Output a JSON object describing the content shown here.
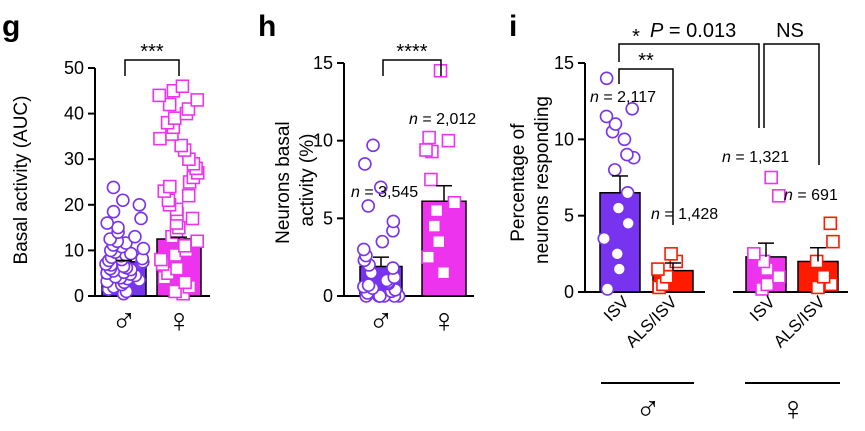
{
  "colors": {
    "male": "#7733ee",
    "female": "#ee33ee",
    "als": "#ff1a00",
    "axis": "#000000"
  },
  "chart_data": [
    {
      "panel": "g",
      "type": "bar",
      "ylabel": "Basal activity (AUC)",
      "ylim": [
        0,
        50
      ],
      "yticks": [
        0,
        10,
        20,
        30,
        40,
        50
      ],
      "categories": [
        "♂",
        "♀"
      ],
      "values": [
        7.5,
        12.5
      ],
      "errors": [
        0.3,
        0.4
      ],
      "significance": "***",
      "points": [
        [
          0.5,
          1.0,
          1.5,
          2.0,
          2.5,
          3.0,
          3.2,
          3.5,
          3.8,
          4.0,
          4.2,
          4.5,
          4.8,
          5.0,
          5.2,
          5.5,
          5.8,
          6.0,
          6.2,
          6.5,
          6.8,
          7.0,
          7.2,
          7.5,
          7.8,
          8.0,
          8.2,
          8.5,
          8.8,
          9.0,
          9.3,
          9.6,
          10.0,
          10.4,
          10.8,
          11.2,
          11.6,
          12.0,
          12.5,
          13.0,
          14.0,
          15.0,
          16.0,
          17.0,
          18.5,
          20.0,
          21.0,
          23.8
        ],
        [
          0.5,
          1.0,
          2.0,
          3.0,
          4.0,
          5.0,
          6.0,
          7.0,
          8.0,
          9.0,
          10.0,
          11.0,
          12.0,
          13.0,
          14.0,
          15.0,
          16.0,
          17.0,
          18.0,
          19.0,
          20.0,
          21.0,
          22.0,
          23.0,
          24.0,
          25.0,
          26.0,
          27.0,
          28.0,
          29.0,
          30.0,
          32.0,
          33.0,
          34.5,
          35.5,
          37.0,
          38.0,
          39.0,
          40.0,
          41.0,
          42.0,
          43.0,
          44.0,
          45.0,
          46.0
        ]
      ]
    },
    {
      "panel": "h",
      "type": "bar",
      "ylabel_lines": [
        "Neurons basal",
        "activity (%)"
      ],
      "ylim": [
        0,
        15
      ],
      "yticks": [
        0,
        5,
        10,
        15
      ],
      "categories": [
        "♂",
        "♀"
      ],
      "values": [
        1.9,
        6.1
      ],
      "errors": [
        0.6,
        1.0
      ],
      "significance": "****",
      "n_labels": [
        "n = 3,545",
        "n = 2,012"
      ],
      "points": [
        [
          0,
          0,
          0,
          0,
          0,
          0,
          0,
          0.2,
          0.3,
          0.4,
          0.5,
          0.6,
          0.7,
          0.8,
          0.9,
          1.0,
          1.2,
          1.5,
          1.8,
          2.0,
          2.3,
          2.6,
          3.0,
          3.5,
          4.2,
          4.8,
          5.8,
          7.0,
          8.5,
          9.7
        ],
        [
          1.5,
          2.5,
          3.5,
          4.5,
          5.5,
          6.0,
          7.5,
          9.3,
          9.4,
          10.0,
          10.2,
          14.5
        ]
      ]
    },
    {
      "panel": "i",
      "type": "bar",
      "ylabel_lines": [
        "Percentage of",
        "neurons responding"
      ],
      "ylim": [
        0,
        15
      ],
      "yticks": [
        0,
        5,
        10,
        15
      ],
      "categories": [
        "ISV",
        "ALS/ISV",
        "ISV",
        "ALS/ISV"
      ],
      "values": [
        6.5,
        1.4,
        2.3,
        2.0
      ],
      "errors": [
        1.1,
        0.5,
        0.9,
        0.9
      ],
      "n_labels": [
        "n = 2,117",
        "n = 1,428",
        "n = 1,321",
        "n = 691"
      ],
      "groups": [
        "♂",
        "♀"
      ],
      "annotations": [
        {
          "stars": "*",
          "text": "P = 0.013"
        },
        {
          "text": "NS"
        },
        {
          "stars": "**"
        }
      ],
      "points": [
        [
          0.2,
          1.5,
          2.5,
          3.5,
          4.5,
          5.5,
          6.5,
          8.0,
          8.8,
          9.0,
          10.0,
          10.5,
          11.0,
          11.5,
          12.0,
          14.0
        ],
        [
          0.3,
          0.5,
          1.0,
          1.5,
          2.0,
          2.5
        ],
        [
          0.2,
          0.5,
          1.0,
          1.5,
          2.0,
          2.5,
          6.3,
          7.5
        ],
        [
          0.3,
          0.5,
          1.0,
          2.0,
          3.3,
          4.5
        ]
      ]
    }
  ]
}
